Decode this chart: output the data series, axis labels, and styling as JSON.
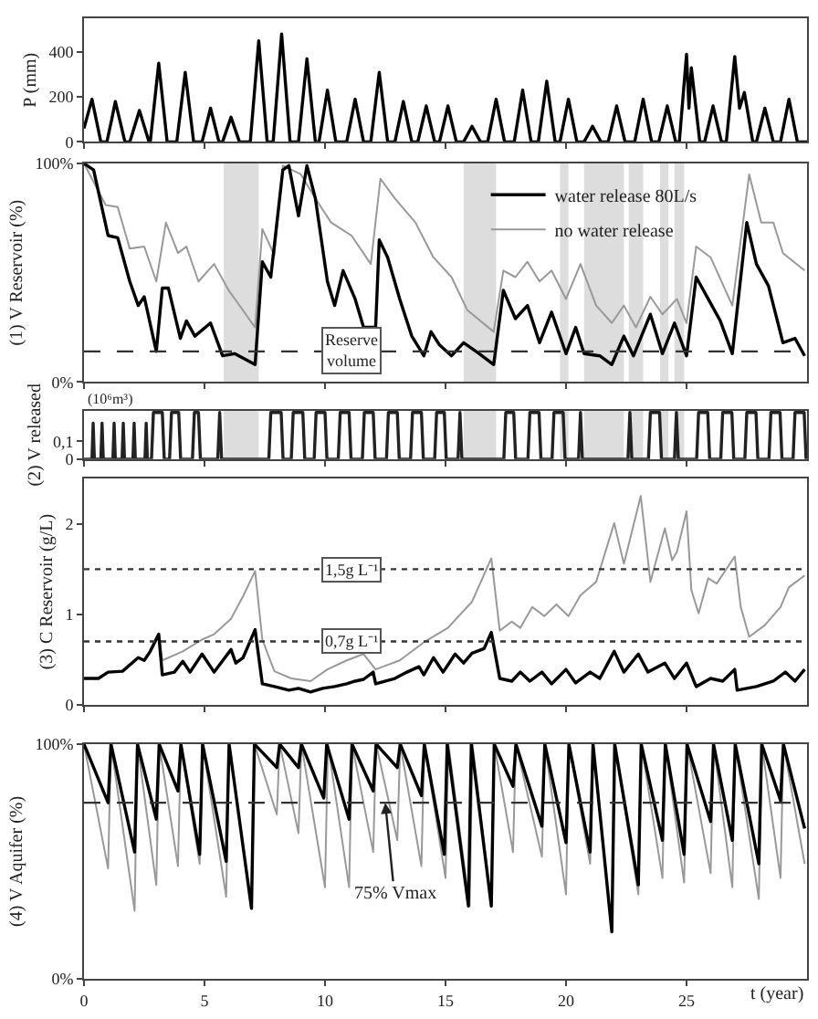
{
  "chart_data": [
    {
      "type": "line",
      "ylabel": "P (mm)",
      "xlim": [
        0,
        30
      ],
      "xticks": [
        0,
        5,
        10,
        15,
        20,
        25
      ],
      "ylim": [
        0,
        550
      ],
      "yticks": [
        0,
        200,
        400
      ],
      "tick_labels": "y",
      "grid": false,
      "series": [
        {
          "color": "#000000",
          "x": [
            0,
            0.33,
            0.7,
            0.95,
            1.15,
            1.3,
            1.7,
            1.9,
            2.3,
            2.7,
            2.75,
            3.1,
            3.45,
            3.85,
            4.2,
            4.55,
            4.9,
            5.25,
            5.6,
            5.75,
            6.1,
            6.45,
            6.9,
            7.25,
            7.6,
            7.85,
            8.2,
            8.55,
            8.9,
            9.25,
            9.6,
            9.75,
            10.1,
            10.45,
            10.9,
            11.25,
            11.6,
            11.9,
            12.25,
            12.6,
            12.9,
            13.25,
            13.6,
            13.85,
            14.2,
            14.55,
            14.75,
            15.1,
            15.45,
            15.75,
            16.1,
            16.45,
            16.75,
            17.1,
            17.45,
            17.85,
            18.2,
            18.55,
            18.85,
            19.2,
            19.55,
            19.75,
            20.1,
            20.45,
            20.75,
            21.1,
            21.45,
            21.75,
            22.1,
            22.45,
            22.85,
            23.2,
            23.55,
            23.85,
            24.2,
            24.55,
            24.7,
            25.0,
            25.1,
            25.2,
            25.55,
            25.75,
            26.1,
            26.45,
            26.65,
            27.0,
            27.2,
            27.4,
            27.75,
            27.9,
            28.25,
            28.6,
            28.9,
            29.25,
            29.6,
            30
          ],
          "values": [
            60,
            190,
            0,
            0,
            100,
            180,
            0,
            0,
            140,
            0,
            0,
            350,
            0,
            0,
            310,
            0,
            0,
            150,
            0,
            0,
            110,
            0,
            0,
            450,
            0,
            0,
            480,
            0,
            0,
            370,
            0,
            0,
            230,
            0,
            0,
            190,
            0,
            0,
            310,
            0,
            0,
            180,
            0,
            0,
            160,
            0,
            0,
            160,
            0,
            0,
            70,
            0,
            0,
            190,
            0,
            0,
            230,
            0,
            0,
            270,
            0,
            0,
            190,
            0,
            0,
            70,
            0,
            0,
            160,
            0,
            0,
            190,
            0,
            0,
            160,
            0,
            0,
            390,
            150,
            330,
            0,
            0,
            160,
            0,
            0,
            380,
            150,
            220,
            0,
            0,
            150,
            0,
            0,
            190,
            0,
            0
          ]
        }
      ]
    },
    {
      "type": "line",
      "ylabel": "(1) V Reservoir (%)",
      "xlim": [
        0,
        30
      ],
      "xticks": [
        0,
        5,
        10,
        15,
        20,
        25
      ],
      "ylim": [
        0,
        100
      ],
      "yticks": [
        {
          "value": 0,
          "label": "0%"
        },
        {
          "value": 100,
          "label": "100%"
        }
      ],
      "tick_labels": "y",
      "grid": false,
      "legend": "top right",
      "series": [
        {
          "name": "water release 80L/s",
          "color": "#000000",
          "x": [
            0,
            0.4,
            1,
            1.4,
            1.9,
            2.25,
            2.5,
            3,
            3.25,
            3.5,
            4,
            4.25,
            4.6,
            5.25,
            5.75,
            6.25,
            7.1,
            7.4,
            7.75,
            8.25,
            8.5,
            8.9,
            9.25,
            9.6,
            10.1,
            10.4,
            10.75,
            11.25,
            11.6,
            12.1,
            12.25,
            12.6,
            13.1,
            13.6,
            14.1,
            14.4,
            14.75,
            15.25,
            15.75,
            16.4,
            17,
            17.4,
            17.9,
            18.4,
            18.9,
            19.4,
            20,
            20.4,
            20.75,
            21.4,
            21.9,
            22.4,
            22.8,
            23.5,
            24,
            24.5,
            25,
            25.4,
            25.9,
            26.4,
            26.9,
            27.5,
            27.9,
            28.4,
            29,
            29.5,
            29.9
          ],
          "values": [
            100,
            97,
            67,
            66,
            46,
            35,
            39,
            14,
            43,
            43,
            20,
            28,
            21,
            27,
            12,
            13,
            8,
            55,
            48,
            97,
            99,
            76,
            99,
            84,
            46,
            35,
            51,
            38,
            25,
            25,
            65,
            57,
            38,
            21,
            12,
            23,
            17,
            12,
            18,
            13,
            8,
            42,
            29,
            35,
            18,
            32,
            13,
            25,
            13,
            12,
            8,
            21,
            12,
            31,
            13,
            27,
            12,
            48,
            38,
            28,
            13,
            73,
            54,
            44,
            18,
            20,
            12
          ]
        },
        {
          "name": "no water release",
          "color": "#999999",
          "x": [
            0,
            0.9,
            1.4,
            1.9,
            2.5,
            3,
            3.4,
            3.9,
            4.25,
            4.75,
            5.4,
            6,
            7.1,
            7.4,
            7.9,
            8.25,
            9,
            9.6,
            10.25,
            11.1,
            11.9,
            12.3,
            12.9,
            13.75,
            14.5,
            15.25,
            15.9,
            17,
            17.4,
            17.9,
            18.4,
            18.9,
            19.4,
            20,
            20.6,
            21.25,
            21.9,
            22.4,
            22.9,
            23.5,
            24,
            24.6,
            25,
            25.4,
            26,
            26.9,
            27.6,
            28.1,
            28.6,
            29,
            29.9
          ],
          "values": [
            100,
            81,
            80,
            61,
            62,
            46,
            73,
            59,
            62,
            46,
            54,
            42,
            25,
            70,
            58,
            99,
            95,
            84,
            73,
            67,
            54,
            93,
            84,
            73,
            57,
            48,
            33,
            23,
            51,
            48,
            55,
            46,
            51,
            38,
            54,
            35,
            27,
            35,
            25,
            39,
            31,
            38,
            27,
            62,
            57,
            35,
            95,
            73,
            73,
            59,
            51
          ]
        }
      ],
      "ref_lines": [
        {
          "axis": "y",
          "value": 14,
          "label": "Reserve volume",
          "line_style": "dashed",
          "color": "#333333"
        }
      ],
      "bands": [
        {
          "axis": "x",
          "from": 5.8,
          "to": 7.25,
          "color": "#dddddd"
        },
        {
          "axis": "x",
          "from": 15.75,
          "to": 17.1,
          "color": "#dddddd"
        },
        {
          "axis": "x",
          "from": 19.75,
          "to": 20.1,
          "color": "#dddddd"
        },
        {
          "axis": "x",
          "from": 20.75,
          "to": 22.4,
          "color": "#dddddd"
        },
        {
          "axis": "x",
          "from": 22.6,
          "to": 23.2,
          "color": "#dddddd"
        },
        {
          "axis": "x",
          "from": 23.9,
          "to": 24.25,
          "color": "#dddddd"
        },
        {
          "axis": "x",
          "from": 24.5,
          "to": 24.9,
          "color": "#dddddd"
        }
      ]
    },
    {
      "type": "line",
      "ylabel": "(2) V released",
      "xlim": [
        0,
        30
      ],
      "xticks": [
        0,
        5,
        10,
        15,
        20,
        25
      ],
      "ylim": [
        0,
        0.27
      ],
      "yticks": [
        0,
        {
          "value": 0.1,
          "label": "0,1"
        }
      ],
      "tick_labels": "y",
      "grid": false,
      "annotations": [
        "(10⁶m³)"
      ],
      "series": [
        {
          "color": "#222222",
          "x": [
            0,
            0.33,
            0.38,
            0.43,
            0.7,
            0.75,
            0.8,
            1.2,
            1.25,
            1.3,
            1.58,
            1.63,
            1.68,
            2.03,
            2.08,
            2.13,
            2.53,
            2.58,
            2.63,
            2.8,
            2.88,
            3.25,
            3.33,
            3.55,
            3.63,
            3.93,
            4.01,
            4.5,
            4.58,
            4.75,
            4.83,
            5.55,
            5.63,
            5.71,
            7.67,
            7.75,
            8.18,
            8.26,
            8.6,
            8.68,
            9.08,
            9.16,
            9.55,
            9.63,
            10.0,
            10.08,
            10.55,
            10.63,
            11.0,
            11.08,
            11.55,
            11.63,
            12.0,
            12.08,
            12.55,
            12.63,
            13.0,
            13.08,
            13.55,
            13.63,
            14.0,
            14.08,
            14.55,
            14.63,
            14.95,
            15.03,
            15.52,
            15.6,
            15.68,
            17.42,
            17.5,
            17.83,
            17.91,
            18.42,
            18.5,
            18.88,
            18.96,
            19.42,
            19.5,
            19.88,
            19.96,
            20.52,
            20.6,
            20.68,
            22.57,
            22.65,
            22.73,
            23.42,
            23.5,
            23.88,
            23.96,
            24.5,
            24.58,
            24.66,
            25.42,
            25.5,
            25.88,
            25.96,
            26.42,
            26.5,
            26.88,
            26.96,
            27.42,
            27.5,
            27.88,
            27.96,
            28.42,
            28.5,
            28.88,
            28.96,
            29.42,
            29.5,
            29.88,
            29.96
          ],
          "values": [
            0,
            0,
            0.2,
            0,
            0,
            0.2,
            0,
            0,
            0.2,
            0,
            0,
            0.2,
            0,
            0,
            0.2,
            0,
            0,
            0.2,
            0,
            0,
            0.26,
            0.26,
            0,
            0,
            0.26,
            0.26,
            0,
            0,
            0.26,
            0.26,
            0,
            0,
            0.26,
            0,
            0,
            0.26,
            0.26,
            0,
            0,
            0.26,
            0.26,
            0,
            0,
            0.26,
            0.26,
            0,
            0,
            0.26,
            0.26,
            0,
            0,
            0.26,
            0.26,
            0,
            0,
            0.26,
            0.26,
            0,
            0,
            0.26,
            0.26,
            0,
            0,
            0.26,
            0.26,
            0,
            0,
            0.26,
            0,
            0,
            0.26,
            0.26,
            0,
            0,
            0.26,
            0.26,
            0,
            0,
            0.26,
            0.26,
            0,
            0,
            0.26,
            0,
            0,
            0.26,
            0,
            0,
            0.26,
            0.26,
            0,
            0,
            0.26,
            0,
            0,
            0.26,
            0.26,
            0,
            0,
            0.26,
            0.26,
            0,
            0,
            0.26,
            0.26,
            0,
            0,
            0.26,
            0.26,
            0,
            0,
            0.26,
            0.26,
            0
          ]
        }
      ],
      "bands": [
        {
          "axis": "x",
          "from": 5.8,
          "to": 7.25,
          "color": "#dddddd"
        },
        {
          "axis": "x",
          "from": 15.75,
          "to": 17.1,
          "color": "#dddddd"
        },
        {
          "axis": "x",
          "from": 19.75,
          "to": 20.1,
          "color": "#dddddd"
        },
        {
          "axis": "x",
          "from": 20.75,
          "to": 22.4,
          "color": "#dddddd"
        },
        {
          "axis": "x",
          "from": 22.6,
          "to": 23.2,
          "color": "#dddddd"
        },
        {
          "axis": "x",
          "from": 23.9,
          "to": 24.25,
          "color": "#dddddd"
        },
        {
          "axis": "x",
          "from": 24.5,
          "to": 24.9,
          "color": "#dddddd"
        }
      ]
    },
    {
      "type": "line",
      "ylabel": "(3) C Reservoir (g/L)",
      "xlim": [
        0,
        30
      ],
      "xticks": [
        0,
        5,
        10,
        15,
        20,
        25
      ],
      "ylim": [
        0,
        2.5
      ],
      "yticks": [
        0,
        1,
        2
      ],
      "tick_labels": "y",
      "grid": false,
      "series": [
        {
          "color": "#000000",
          "x": [
            0,
            0.6,
            1,
            1.6,
            2.25,
            2.5,
            2.75,
            3.1,
            3.25,
            3.75,
            4.1,
            4.4,
            4.9,
            5.4,
            6.1,
            6.3,
            6.6,
            7.1,
            7.4,
            7.9,
            8.5,
            8.9,
            9.4,
            9.9,
            10.4,
            10.9,
            11.25,
            11.6,
            12,
            12.1,
            12.9,
            13.4,
            13.9,
            14.1,
            14.5,
            14.9,
            15.4,
            15.75,
            16.1,
            16.6,
            16.9,
            17.25,
            17.75,
            18.1,
            18.5,
            19,
            19.4,
            20,
            20.4,
            21,
            21.4,
            22,
            22.4,
            23,
            23.4,
            24.1,
            24.5,
            25,
            25.4,
            26,
            26.5,
            27,
            27.1,
            27.9,
            28.6,
            29.1,
            29.5,
            29.9
          ],
          "values": [
            0.29,
            0.29,
            0.36,
            0.37,
            0.52,
            0.49,
            0.59,
            0.78,
            0.33,
            0.36,
            0.48,
            0.36,
            0.56,
            0.36,
            0.61,
            0.46,
            0.52,
            0.83,
            0.23,
            0.2,
            0.16,
            0.18,
            0.14,
            0.18,
            0.2,
            0.23,
            0.26,
            0.28,
            0.36,
            0.23,
            0.29,
            0.36,
            0.42,
            0.33,
            0.52,
            0.36,
            0.56,
            0.46,
            0.57,
            0.62,
            0.8,
            0.29,
            0.26,
            0.36,
            0.26,
            0.36,
            0.23,
            0.39,
            0.24,
            0.36,
            0.29,
            0.59,
            0.36,
            0.56,
            0.36,
            0.46,
            0.29,
            0.46,
            0.2,
            0.29,
            0.26,
            0.39,
            0.16,
            0.2,
            0.26,
            0.36,
            0.26,
            0.39
          ]
        },
        {
          "color": "#999999",
          "x": [
            3.1,
            3.25,
            4.1,
            4.9,
            5.4,
            6.1,
            6.6,
            7.1,
            7.4,
            7.9,
            8.6,
            9.4,
            10.1,
            10.9,
            11.6,
            12.1,
            13.1,
            14.1,
            15.1,
            16.1,
            16.9,
            17.25,
            17.75,
            18.1,
            18.6,
            19.1,
            19.6,
            20.1,
            20.6,
            21.25,
            22,
            22.4,
            23.1,
            23.5,
            24.1,
            24.4,
            24.6,
            25,
            25.2,
            25.5,
            25.9,
            26.25,
            27,
            27.25,
            27.6,
            28.25,
            28.9,
            29.25,
            29.9
          ],
          "values": [
            0.78,
            0.49,
            0.59,
            0.72,
            0.78,
            0.95,
            1.2,
            1.48,
            0.72,
            0.37,
            0.29,
            0.26,
            0.39,
            0.49,
            0.56,
            0.39,
            0.49,
            0.69,
            0.85,
            1.14,
            1.62,
            0.82,
            0.92,
            0.85,
            1.08,
            0.98,
            1.11,
            0.98,
            1.21,
            1.36,
            2.01,
            1.56,
            2.31,
            1.36,
            1.95,
            1.6,
            1.69,
            2.14,
            1.27,
            1.01,
            1.4,
            1.34,
            1.64,
            1.08,
            0.75,
            0.88,
            1.08,
            1.3,
            1.43
          ]
        }
      ],
      "ref_lines": [
        {
          "axis": "y",
          "value": 1.5,
          "label": "1,5g L⁻¹",
          "line_style": "dotted",
          "color": "#333333"
        },
        {
          "axis": "y",
          "value": 0.7,
          "label": "0,7g L⁻¹",
          "line_style": "dotted",
          "color": "#333333"
        }
      ]
    },
    {
      "type": "line",
      "ylabel": "(4) V Aquifer (%)",
      "xlabel": "t (year)",
      "xlim": [
        0,
        30
      ],
      "xticks": [
        0,
        5,
        10,
        15,
        20,
        25
      ],
      "ylim": [
        0,
        100
      ],
      "yticks": [
        {
          "value": 0,
          "label": "0%"
        },
        {
          "value": 100,
          "label": "100%"
        }
      ],
      "grid": false,
      "series": [
        {
          "color": "#000000",
          "x": [
            0,
            1,
            1.12,
            2.1,
            2.22,
            3,
            3.12,
            3.9,
            4.02,
            4.8,
            4.92,
            5.9,
            6.02,
            6.95,
            7.07,
            8,
            8.12,
            8.9,
            9.02,
            9.95,
            10.07,
            11,
            11.12,
            12,
            12.12,
            13,
            13.12,
            14,
            14.12,
            14.95,
            15.07,
            15.95,
            16.07,
            16.9,
            17.02,
            17.8,
            17.92,
            19,
            19.12,
            20,
            20.12,
            21,
            21.12,
            21.9,
            22.02,
            23,
            23.12,
            24,
            24.12,
            24.9,
            25.02,
            26,
            26.12,
            26.9,
            27.02,
            28,
            28.12,
            28.9,
            29.02,
            29.9
          ],
          "values": [
            100,
            75,
            100,
            54,
            100,
            68,
            100,
            80,
            100,
            53,
            100,
            50,
            100,
            30,
            100,
            90,
            100,
            90,
            100,
            77,
            100,
            68,
            100,
            80,
            100,
            90,
            100,
            78,
            100,
            53,
            100,
            31,
            100,
            31,
            100,
            82,
            100,
            65,
            100,
            58,
            100,
            54,
            100,
            20,
            100,
            40,
            100,
            59,
            100,
            53,
            100,
            67,
            100,
            59,
            100,
            49,
            100,
            76,
            100,
            64
          ]
        },
        {
          "color": "#999999",
          "x": [
            0,
            1,
            1.12,
            2.1,
            2.22,
            3,
            3.12,
            3.9,
            4.02,
            4.8,
            4.92,
            5.9,
            6.02,
            6.95,
            7.07,
            8,
            8.12,
            8.9,
            9.02,
            10,
            10.12,
            11,
            11.12,
            12,
            12.12,
            13,
            13.12,
            14,
            14.12,
            15,
            15.12,
            16,
            16.12,
            16.9,
            17.02,
            17.8,
            17.92,
            19,
            19.12,
            20,
            20.12,
            21,
            21.12,
            21.9,
            22.02,
            23,
            23.12,
            24,
            24.12,
            24.9,
            25.02,
            26,
            26.12,
            26.9,
            27.02,
            28,
            28.12,
            28.9,
            29.02,
            29.9
          ],
          "values": [
            100,
            47,
            100,
            29,
            100,
            40,
            100,
            48,
            100,
            49,
            100,
            35,
            100,
            30,
            100,
            70,
            100,
            62,
            100,
            39,
            100,
            39,
            100,
            54,
            100,
            59,
            100,
            48,
            100,
            43,
            100,
            31,
            100,
            31,
            100,
            54,
            100,
            52,
            100,
            36,
            100,
            49,
            100,
            20,
            100,
            36,
            100,
            43,
            100,
            41,
            100,
            45,
            100,
            39,
            100,
            34,
            100,
            43,
            100,
            49
          ]
        }
      ],
      "ref_lines": [
        {
          "axis": "y",
          "value": 75,
          "line_style": "dashed",
          "color": "#333333"
        }
      ],
      "annotations": [
        {
          "text": "75% Vmax",
          "x": 12.5,
          "y": 75
        }
      ]
    }
  ]
}
